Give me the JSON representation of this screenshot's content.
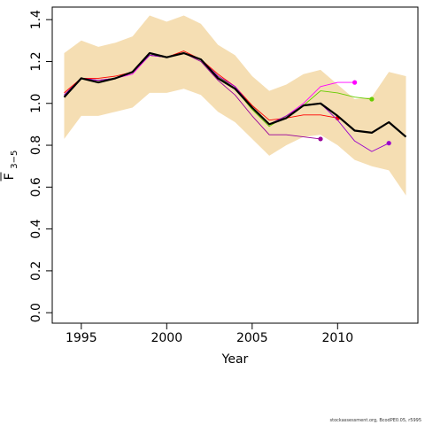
{
  "chart_data": {
    "type": "line",
    "xlabel": "Year",
    "ylabel": "F",
    "ylabel_subscript": "3−5",
    "xlim": [
      1993.3,
      2014.7
    ],
    "ylim": [
      -0.05,
      1.46
    ],
    "x_ticks": [
      1995,
      2000,
      2005,
      2010
    ],
    "y_ticks": [
      0.0,
      0.2,
      0.4,
      0.6,
      0.8,
      1.0,
      1.2,
      1.4
    ],
    "y_tick_labels": [
      "0.0",
      "0.2",
      "0.4",
      "0.6",
      "0.8",
      "1.0",
      "1.2",
      "1.4"
    ],
    "grid": false,
    "band": {
      "color": "#f5deb3",
      "x": [
        1994,
        1995,
        1996,
        1997,
        1998,
        1999,
        2000,
        2001,
        2002,
        2003,
        2004,
        2005,
        2006,
        2007,
        2008,
        2009,
        2010,
        2011,
        2012,
        2013,
        2014
      ],
      "upper": [
        1.24,
        1.3,
        1.27,
        1.29,
        1.32,
        1.42,
        1.39,
        1.42,
        1.38,
        1.28,
        1.23,
        1.13,
        1.06,
        1.09,
        1.14,
        1.16,
        1.09,
        1.02,
        1.03,
        1.15,
        1.13
      ],
      "lower": [
        0.83,
        0.94,
        0.94,
        0.96,
        0.98,
        1.05,
        1.05,
        1.07,
        1.04,
        0.96,
        0.91,
        0.83,
        0.75,
        0.8,
        0.84,
        0.85,
        0.8,
        0.73,
        0.7,
        0.68,
        0.56
      ]
    },
    "series": [
      {
        "color": "#000000",
        "width": 2.2,
        "end_dot": false,
        "x": [
          1994,
          1995,
          1996,
          1997,
          1998,
          1999,
          2000,
          2001,
          2002,
          2003,
          2004,
          2005,
          2006,
          2007,
          2008,
          2009,
          2010,
          2011,
          2012,
          2013,
          2014
        ],
        "values": [
          1.03,
          1.12,
          1.1,
          1.12,
          1.15,
          1.24,
          1.22,
          1.24,
          1.21,
          1.12,
          1.07,
          0.98,
          0.9,
          0.93,
          0.99,
          1.0,
          0.94,
          0.87,
          0.86,
          0.91,
          0.84
        ]
      },
      {
        "color": "#ff0000",
        "width": 0.9,
        "end_dot": true,
        "x": [
          1994,
          1995,
          1996,
          1997,
          1998,
          1999,
          2000,
          2001,
          2002,
          2003,
          2004,
          2005,
          2006,
          2007,
          2008,
          2009,
          2010
        ],
        "values": [
          1.05,
          1.12,
          1.12,
          1.13,
          1.15,
          1.23,
          1.22,
          1.25,
          1.21,
          1.14,
          1.08,
          0.99,
          0.92,
          0.93,
          0.945,
          0.945,
          0.93
        ]
      },
      {
        "color": "#ff00ff",
        "width": 0.9,
        "end_dot": true,
        "x": [
          1994,
          1995,
          1996,
          1997,
          1998,
          1999,
          2000,
          2001,
          2002,
          2003,
          2004,
          2005,
          2006,
          2007,
          2008,
          2009,
          2010,
          2011
        ],
        "values": [
          1.04,
          1.12,
          1.11,
          1.12,
          1.14,
          1.23,
          1.22,
          1.24,
          1.21,
          1.13,
          1.08,
          0.98,
          0.9,
          0.94,
          1.0,
          1.08,
          1.1,
          1.1
        ]
      },
      {
        "color": "#66cc00",
        "width": 0.9,
        "end_dot": true,
        "x": [
          1994,
          1995,
          1996,
          1997,
          1998,
          1999,
          2000,
          2001,
          2002,
          2003,
          2004,
          2005,
          2006,
          2007,
          2008,
          2009,
          2010,
          2011,
          2012
        ],
        "values": [
          1.04,
          1.12,
          1.11,
          1.12,
          1.15,
          1.23,
          1.22,
          1.24,
          1.21,
          1.13,
          1.07,
          0.97,
          0.89,
          0.94,
          0.99,
          1.06,
          1.05,
          1.03,
          1.02
        ]
      },
      {
        "color": "#990099",
        "width": 0.9,
        "end_dot": true,
        "x": [
          1994,
          1995,
          1996,
          1997,
          1998,
          1999,
          2000,
          2001,
          2002,
          2003,
          2004,
          2005,
          2006,
          2007,
          2008,
          2009
        ],
        "values": [
          1.04,
          1.12,
          1.11,
          1.12,
          1.15,
          1.23,
          1.22,
          1.24,
          1.2,
          1.11,
          1.04,
          0.94,
          0.85,
          0.85,
          0.84,
          0.83
        ]
      },
      {
        "color": "#9900cc",
        "width": 0.9,
        "end_dot": true,
        "x": [
          1994,
          1995,
          1996,
          1997,
          1998,
          1999,
          2000,
          2001,
          2002,
          2003,
          2004,
          2005,
          2006,
          2007,
          2008,
          2009,
          2010,
          2011,
          2012,
          2013
        ],
        "values": [
          1.04,
          1.12,
          1.11,
          1.12,
          1.15,
          1.23,
          1.22,
          1.24,
          1.21,
          1.13,
          1.08,
          0.98,
          0.9,
          0.94,
          0.99,
          1.0,
          0.92,
          0.82,
          0.77,
          0.81
        ]
      }
    ]
  },
  "footer": "stockassessment.org, BcodPE0.05, r5995"
}
